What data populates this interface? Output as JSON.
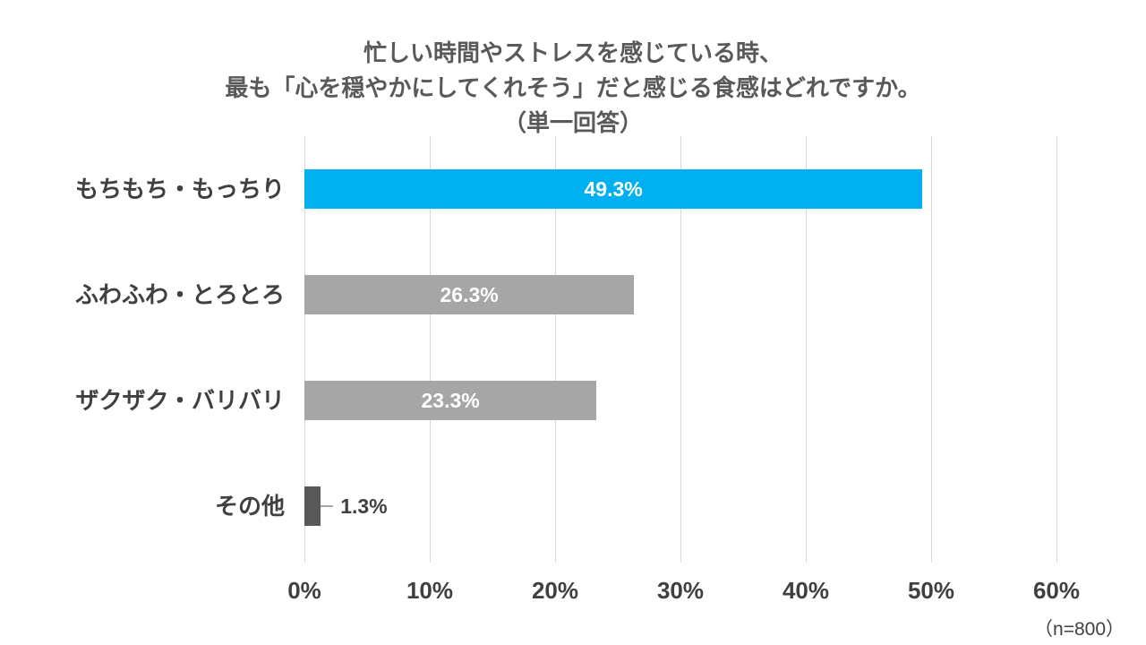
{
  "chart_data": {
    "type": "bar",
    "orientation": "horizontal",
    "title_lines": [
      "忙しい時間やストレスを感じている時、",
      "最も「心を穏やかにしてくれそう」だと感じる食感はどれですか。",
      "（単一回答）"
    ],
    "categories": [
      "もちもち・もっちり",
      "ふわふわ・とろとろ",
      "ザクザク・バリバリ",
      "その他"
    ],
    "values": [
      49.3,
      26.3,
      23.3,
      1.3
    ],
    "value_labels": [
      "49.3%",
      "26.3%",
      "23.3%",
      "1.3%"
    ],
    "value_label_positions": [
      "inside",
      "inside",
      "inside",
      "outside"
    ],
    "bar_colors": [
      "#00b0f0",
      "#a6a6a6",
      "#a6a6a6",
      "#595959"
    ],
    "xlim": [
      0,
      60
    ],
    "x_ticks": [
      "0%",
      "10%",
      "20%",
      "30%",
      "40%",
      "50%",
      "60%"
    ],
    "sample_note": "（n=800）",
    "grid": true,
    "legend": "none",
    "colors": {
      "highlight": "#00b0f0",
      "default_bar": "#a6a6a6",
      "other_bar": "#595959",
      "gridline": "#d9d9d9",
      "title_text": "#595959",
      "label_text": "#404040",
      "bar_label_text": "#ffffff"
    }
  }
}
